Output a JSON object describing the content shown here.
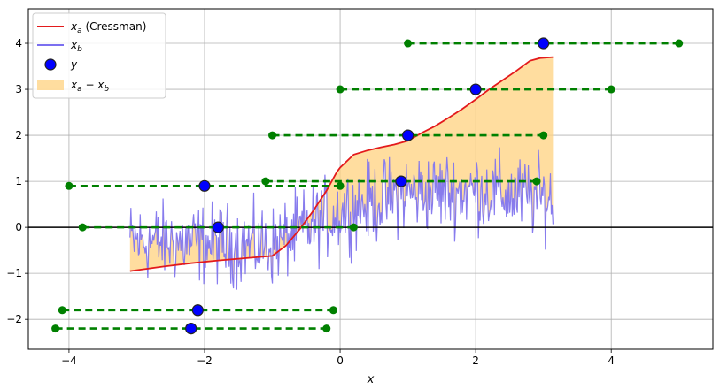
{
  "chart_data": {
    "type": "line",
    "title": "",
    "xlabel": "x",
    "ylabel": "",
    "xlim": [
      -4.6,
      5.5
    ],
    "ylim": [
      -2.65,
      4.75
    ],
    "xticks": [
      -4,
      -2,
      0,
      2,
      4
    ],
    "yticks": [
      -2,
      -1,
      0,
      1,
      2,
      3,
      4
    ],
    "xtick_labels": [
      "−4",
      "−2",
      "0",
      "2",
      "4"
    ],
    "ytick_labels": [
      "−2",
      "−1",
      "0",
      "1",
      "2",
      "3",
      "4"
    ],
    "grid": true,
    "zero_line": true,
    "legend_position": "top-left",
    "legend": [
      {
        "label": "x_a (Cressman)",
        "main": "x",
        "sub": "a",
        "rest": " (Cressman)",
        "kind": "line",
        "color": "#e31a1c"
      },
      {
        "label": "x_b",
        "main": "x",
        "sub": "b",
        "rest": "",
        "kind": "line",
        "color": "#7b6ff0"
      },
      {
        "label": "y",
        "main": "y",
        "sub": "",
        "rest": "",
        "kind": "marker",
        "color": "#0000ff"
      },
      {
        "label": "x_a − x_b",
        "main": "x",
        "sub": "a",
        "mid": " − x",
        "sub2": "b",
        "kind": "fill",
        "color": "#ffd27f"
      }
    ],
    "analysis": {
      "name": "x_a (Cressman)",
      "color": "#e31a1c",
      "x": [
        -3.1,
        -2.6,
        -2.2,
        -1.8,
        -1.4,
        -1.0,
        -0.8,
        -0.6,
        -0.4,
        -0.2,
        -0.05,
        0.0,
        0.2,
        0.4,
        0.6,
        0.8,
        1.0,
        1.2,
        1.4,
        1.6,
        1.8,
        2.0,
        2.2,
        2.4,
        2.6,
        2.8,
        2.95,
        3.14
      ],
      "y": [
        -0.95,
        -0.85,
        -0.78,
        -0.72,
        -0.67,
        -0.62,
        -0.4,
        -0.05,
        0.35,
        0.8,
        1.2,
        1.3,
        1.58,
        1.67,
        1.74,
        1.8,
        1.88,
        2.05,
        2.2,
        2.38,
        2.57,
        2.78,
        3.0,
        3.2,
        3.4,
        3.62,
        3.68,
        3.7
      ]
    },
    "background": {
      "name": "x_b",
      "color": "#7b6ff0",
      "x_range": [
        -3.1,
        3.14
      ],
      "n_points": 500,
      "trend_x": [
        -3.1,
        -1.0,
        0.0,
        1.0,
        2.0,
        3.14
      ],
      "trend_y": [
        -0.3,
        -0.4,
        0.35,
        0.75,
        0.8,
        0.6
      ],
      "noise_amplitude": 0.85
    },
    "difference_fill": {
      "name": "x_a − x_b",
      "color": "#ffd27f"
    },
    "observations": [
      {
        "x": -2.2,
        "y": -2.2,
        "x_left": -4.2,
        "x_right": -0.2
      },
      {
        "x": -2.1,
        "y": -1.8,
        "x_left": -4.1,
        "x_right": -0.1
      },
      {
        "x": -1.8,
        "y": 0.0,
        "x_left": -3.8,
        "x_right": 0.2
      },
      {
        "x": -2.0,
        "y": 0.9,
        "x_left": -4.0,
        "x_right": 0.0
      },
      {
        "x": 0.9,
        "y": 1.0,
        "x_left": -1.1,
        "x_right": 2.9
      },
      {
        "x": 1.0,
        "y": 2.0,
        "x_left": -1.0,
        "x_right": 3.0
      },
      {
        "x": 2.0,
        "y": 3.0,
        "x_left": 0.0,
        "x_right": 4.0
      },
      {
        "x": 3.0,
        "y": 4.0,
        "x_left": 1.0,
        "x_right": 5.0
      }
    ],
    "observation_color": "#0000ff",
    "influence_color": "#008000"
  }
}
